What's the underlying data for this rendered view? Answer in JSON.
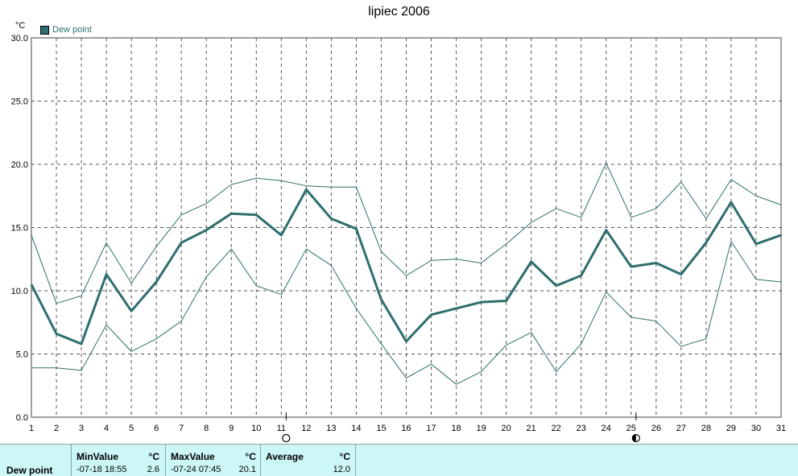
{
  "title": "lipiec 2006",
  "unit": "°C",
  "legend": {
    "label": "Dew point",
    "color": "#2f6e6e"
  },
  "chart_data": {
    "type": "line",
    "title": "lipiec 2006",
    "ylabel": "°C",
    "xlabel": "",
    "ylim": [
      0,
      30
    ],
    "yticks": [
      "0.0",
      "5.0",
      "10.0",
      "15.0",
      "20.0",
      "25.0",
      "30.0"
    ],
    "x": [
      1,
      2,
      3,
      4,
      5,
      6,
      7,
      8,
      9,
      10,
      11,
      12,
      13,
      14,
      15,
      16,
      17,
      18,
      19,
      20,
      21,
      22,
      23,
      24,
      25,
      26,
      27,
      28,
      29,
      30,
      31
    ],
    "series": [
      {
        "name": "Dew point",
        "role": "mean",
        "values": [
          10.5,
          6.6,
          5.8,
          11.3,
          8.4,
          10.7,
          13.8,
          14.8,
          16.1,
          16.0,
          14.4,
          18.0,
          15.7,
          14.9,
          9.3,
          6.0,
          8.1,
          8.6,
          9.1,
          9.2,
          12.3,
          10.4,
          11.2,
          14.8,
          11.9,
          12.2,
          11.3,
          13.8,
          17.0,
          13.7,
          14.4
        ]
      },
      {
        "name": "",
        "role": "max",
        "values": [
          14.4,
          9.0,
          9.6,
          13.8,
          10.6,
          13.5,
          16.0,
          16.9,
          18.4,
          18.9,
          18.7,
          18.3,
          18.2,
          18.2,
          13.1,
          11.2,
          12.4,
          12.5,
          12.2,
          13.7,
          15.4,
          16.5,
          15.8,
          20.1,
          15.8,
          16.5,
          18.6,
          15.7,
          18.8,
          17.5,
          16.8
        ]
      },
      {
        "name": "",
        "role": "min",
        "values": [
          3.9,
          3.9,
          3.7,
          7.3,
          5.2,
          6.2,
          7.6,
          11.1,
          13.3,
          10.4,
          9.7,
          13.3,
          12.0,
          8.6,
          5.8,
          3.1,
          4.2,
          2.6,
          3.6,
          5.7,
          6.7,
          3.6,
          5.8,
          9.9,
          7.9,
          7.6,
          5.6,
          6.2,
          13.9,
          10.9,
          10.7
        ]
      }
    ],
    "grid": true,
    "legend_position": "top-left",
    "markers": [
      {
        "x": 11,
        "symbol": "empty-circle"
      },
      {
        "x": 25,
        "symbol": "half-filled-circle"
      }
    ]
  },
  "stats": {
    "row_label": "Dew point",
    "min": {
      "header": "MinValue",
      "unit": "°C",
      "time": "-07-18  18:55",
      "value": "2.6"
    },
    "max": {
      "header": "MaxValue",
      "unit": "°C",
      "time": "-07-24  07:45",
      "value": "20.1"
    },
    "avg": {
      "header": "Average",
      "unit": "°C",
      "value": "12.0"
    }
  }
}
